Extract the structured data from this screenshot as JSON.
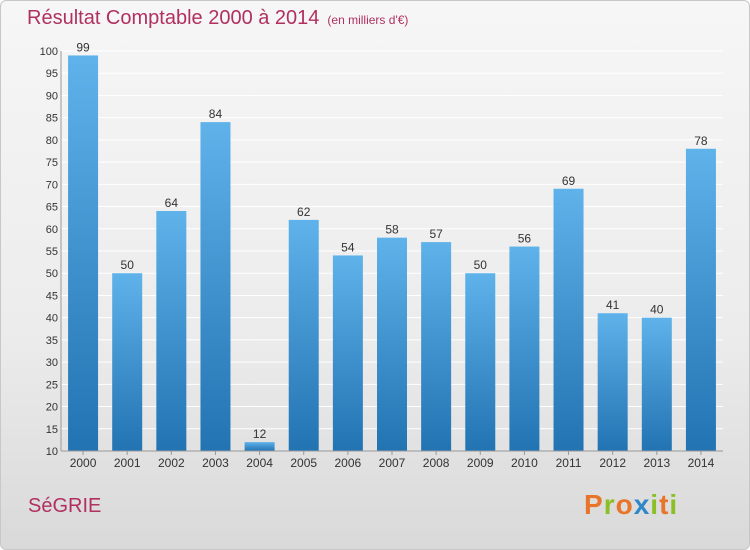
{
  "header": {
    "title": "Résultat Comptable 2000 à 2014",
    "unit": "(en milliers d'€)"
  },
  "footer": {
    "commune": "SéGRIE",
    "brand_letters": [
      "P",
      "r",
      "o",
      "x",
      "i",
      "t",
      "i"
    ]
  },
  "colors": {
    "title": "#b03060",
    "bar_top": "#5fb2ea",
    "bar_bottom": "#2273b2",
    "grid": "#ffffff",
    "brand": [
      "#e8752a",
      "#8cbf26",
      "#e8752a",
      "#2f86c8",
      "#8cbf26",
      "#e8752a",
      "#8cbf26"
    ]
  },
  "chart_data": {
    "type": "bar",
    "title": "Résultat Comptable 2000 à 2014",
    "ylabel": "en milliers d'€",
    "xlabel": "",
    "ylim": [
      10,
      100
    ],
    "y_ticks": [
      10,
      15,
      20,
      25,
      30,
      35,
      40,
      45,
      50,
      55,
      60,
      65,
      70,
      75,
      80,
      85,
      90,
      95,
      100
    ],
    "grid": true,
    "categories": [
      "2000",
      "2001",
      "2002",
      "2003",
      "2004",
      "2005",
      "2006",
      "2007",
      "2008",
      "2009",
      "2010",
      "2011",
      "2012",
      "2013",
      "2014"
    ],
    "values": [
      99,
      50,
      64,
      84,
      12,
      62,
      54,
      58,
      57,
      50,
      56,
      69,
      41,
      40,
      78
    ]
  }
}
